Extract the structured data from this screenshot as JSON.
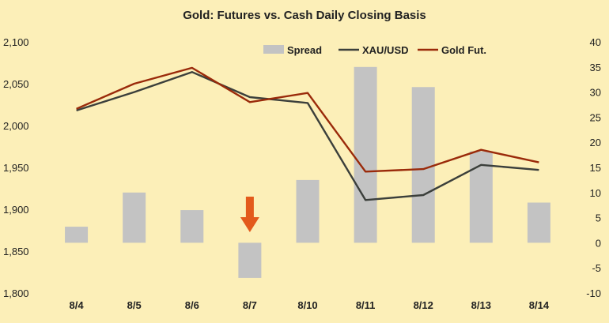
{
  "chart_data": {
    "type": "bar+line",
    "title": "Gold: Futures vs. Cash Daily Closing Basis",
    "categories": [
      "8/4",
      "8/5",
      "8/6",
      "8/7",
      "8/10",
      "8/11",
      "8/12",
      "8/13",
      "8/14"
    ],
    "left_axis": {
      "ylim": [
        1800,
        2100
      ],
      "ticks": [
        "1,800",
        "1,850",
        "1,900",
        "1,950",
        "2,000",
        "2,050",
        "2,100"
      ]
    },
    "right_axis": {
      "ylim": [
        -10,
        40
      ],
      "ticks": [
        "-10",
        "-5",
        "0",
        "5",
        "10",
        "15",
        "20",
        "25",
        "30",
        "35",
        "40"
      ]
    },
    "series": [
      {
        "name": "Spread",
        "kind": "bar",
        "axis": "right",
        "color": "#c3c3c3",
        "values": [
          3.2,
          10,
          6.5,
          -7,
          12.5,
          35,
          31,
          18.2,
          8
        ]
      },
      {
        "name": "XAU/USD",
        "kind": "line",
        "axis": "left",
        "color": "#3b3f3b",
        "values": [
          2018,
          2040,
          2064,
          2034,
          2027,
          1911,
          1917,
          1953,
          1947
        ]
      },
      {
        "name": "Gold Fut.",
        "kind": "line",
        "axis": "left",
        "color": "#9a2a0a",
        "values": [
          2020,
          2050,
          2069,
          2028,
          2039,
          1945,
          1948,
          1971,
          1956
        ]
      }
    ],
    "annotation": {
      "kind": "arrow-down",
      "category": "8/7",
      "color": "#e35a1c"
    },
    "legend_position": "top-right",
    "grid": false
  }
}
